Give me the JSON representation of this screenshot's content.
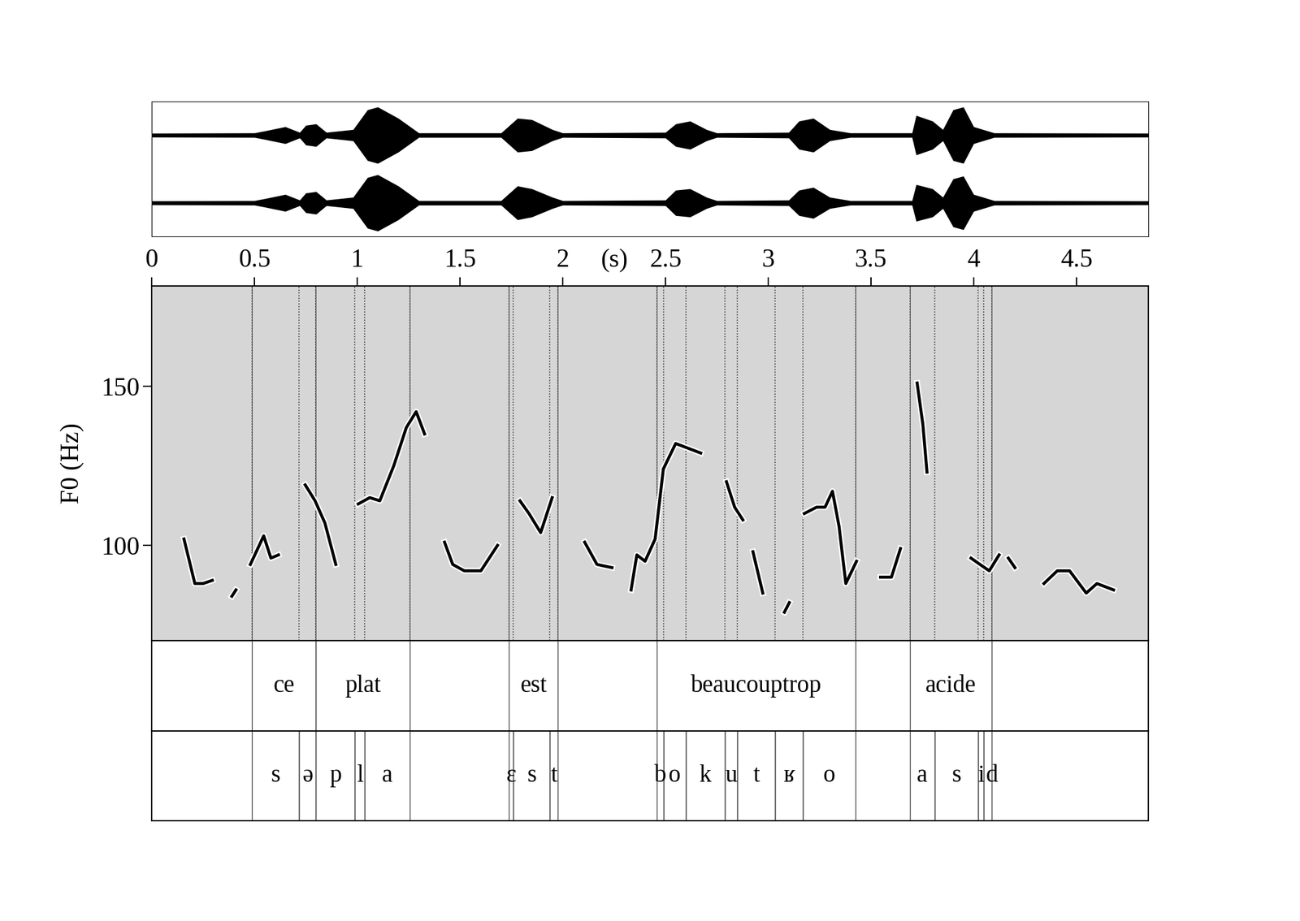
{
  "chart_data": {
    "type": "line",
    "xlabel": "(s)",
    "ylabel": "F0 (Hz)",
    "xlim": [
      0,
      4.85
    ],
    "ylim": [
      70,
      181.5
    ],
    "xticks": [
      0,
      0.5,
      1,
      1.5,
      2,
      2.5,
      3,
      3.5,
      4,
      4.5
    ],
    "yticks": [
      100,
      150
    ],
    "color": "#000000",
    "x": [
      0.157,
      0.21,
      0.25,
      0.295,
      null,
      0.39,
      0.41,
      null,
      0.48,
      0.545,
      0.58,
      0.617,
      null,
      0.747,
      0.795,
      0.843,
      0.896,
      null,
      1.005,
      1.061,
      1.11,
      1.178,
      1.239,
      1.287,
      1.328,
      null,
      1.425,
      1.465,
      1.521,
      1.602,
      1.683,
      null,
      1.792,
      1.836,
      1.893,
      1.949,
      null,
      2.107,
      2.167,
      2.24,
      null,
      2.333,
      2.361,
      2.401,
      2.45,
      2.49,
      2.55,
      2.672,
      null,
      2.797,
      2.837,
      2.877,
      null,
      2.926,
      2.974,
      null,
      3.079,
      3.103,
      null,
      3.176,
      3.236,
      3.277,
      3.313,
      3.345,
      3.378,
      3.43,
      null,
      3.547,
      3.6,
      3.644,
      null,
      3.725,
      3.753,
      3.773,
      null,
      3.987,
      4.031,
      4.076,
      4.124,
      null,
      4.169,
      4.201,
      null,
      4.342,
      4.407,
      4.467,
      4.548,
      4.6,
      4.681
    ],
    "values": [
      102,
      88,
      88,
      89,
      null,
      84,
      86,
      null,
      94,
      103,
      96,
      97,
      null,
      119,
      114,
      107,
      94,
      null,
      113,
      115,
      114,
      125,
      137,
      142,
      135,
      null,
      101,
      94,
      92,
      92,
      100,
      null,
      114,
      110,
      104,
      115,
      null,
      101,
      94,
      93,
      null,
      86,
      97,
      95,
      102,
      124,
      132,
      129,
      null,
      120,
      112,
      108,
      null,
      98,
      85,
      null,
      79,
      82,
      null,
      110,
      112,
      112,
      117,
      106,
      88,
      95,
      null,
      90,
      90,
      99,
      null,
      151,
      138,
      123,
      null,
      96,
      94,
      92,
      97,
      null,
      96,
      93,
      null,
      88,
      92,
      92,
      85,
      88,
      86
    ]
  },
  "waveform": {
    "ylim": [
      -1.2,
      1.2
    ],
    "x": [
      0,
      0.5,
      0.55,
      0.65,
      0.72,
      0.75,
      0.8,
      0.85,
      0.98,
      1.05,
      1.1,
      1.2,
      1.3,
      1.7,
      1.78,
      1.85,
      1.95,
      2.0,
      2.5,
      2.55,
      2.62,
      2.7,
      2.75,
      3.1,
      3.15,
      3.22,
      3.3,
      3.4,
      3.7,
      3.72,
      3.8,
      3.85,
      3.9,
      3.95,
      4.0,
      4.1,
      4.85
    ],
    "channels": [
      [
        0.07,
        0.08,
        0.15,
        0.3,
        0.1,
        0.35,
        0.4,
        0.1,
        0.2,
        0.9,
        1.0,
        0.6,
        0.08,
        0.08,
        0.6,
        0.55,
        0.2,
        0.08,
        0.1,
        0.4,
        0.5,
        0.2,
        0.08,
        0.1,
        0.5,
        0.6,
        0.2,
        0.08,
        0.08,
        0.7,
        0.5,
        0.2,
        0.9,
        1.0,
        0.3,
        0.08,
        0.07
      ],
      [
        0.07,
        0.08,
        0.15,
        0.3,
        0.1,
        0.35,
        0.4,
        0.1,
        0.2,
        0.9,
        1.0,
        0.6,
        0.08,
        0.08,
        0.6,
        0.5,
        0.2,
        0.08,
        0.1,
        0.45,
        0.5,
        0.2,
        0.08,
        0.1,
        0.45,
        0.55,
        0.2,
        0.08,
        0.08,
        0.65,
        0.5,
        0.2,
        0.85,
        0.95,
        0.3,
        0.08,
        0.07
      ]
    ]
  },
  "tiers": [
    {
      "intervals": [
        {
          "start": 0.488,
          "end": 0.799,
          "label": "ce"
        },
        {
          "start": 0.799,
          "end": 1.255,
          "label": "plat"
        },
        {
          "start": 1.739,
          "end": 1.977,
          "label": "est"
        },
        {
          "start": 2.458,
          "end": 3.426,
          "label": "beaucouptrop"
        },
        {
          "start": 3.689,
          "end": 4.088,
          "label": "acide"
        }
      ]
    },
    {
      "intervals": [
        {
          "start": 0.488,
          "end": 0.718,
          "label": "s"
        },
        {
          "start": 0.718,
          "end": 0.799,
          "label": "ə"
        },
        {
          "start": 0.799,
          "end": 0.989,
          "label": "p"
        },
        {
          "start": 0.989,
          "end": 1.037,
          "label": "l"
        },
        {
          "start": 1.037,
          "end": 1.255,
          "label": "a"
        },
        {
          "start": 1.739,
          "end": 1.76,
          "label": "ɛ"
        },
        {
          "start": 1.76,
          "end": 1.937,
          "label": "s"
        },
        {
          "start": 1.937,
          "end": 1.977,
          "label": "t"
        },
        {
          "start": 2.458,
          "end": 2.49,
          "label": "b"
        },
        {
          "start": 2.49,
          "end": 2.599,
          "label": "o"
        },
        {
          "start": 2.599,
          "end": 2.789,
          "label": "k"
        },
        {
          "start": 2.789,
          "end": 2.849,
          "label": "u"
        },
        {
          "start": 2.849,
          "end": 3.035,
          "label": "t"
        },
        {
          "start": 3.035,
          "end": 3.168,
          "label": "ʁ"
        },
        {
          "start": 3.168,
          "end": 3.426,
          "label": "o"
        },
        {
          "start": 3.689,
          "end": 3.81,
          "label": "a"
        },
        {
          "start": 3.81,
          "end": 4.023,
          "label": "s"
        },
        {
          "start": 4.023,
          "end": 4.048,
          "label": "i"
        },
        {
          "start": 4.048,
          "end": 4.088,
          "label": "d"
        }
      ]
    }
  ]
}
